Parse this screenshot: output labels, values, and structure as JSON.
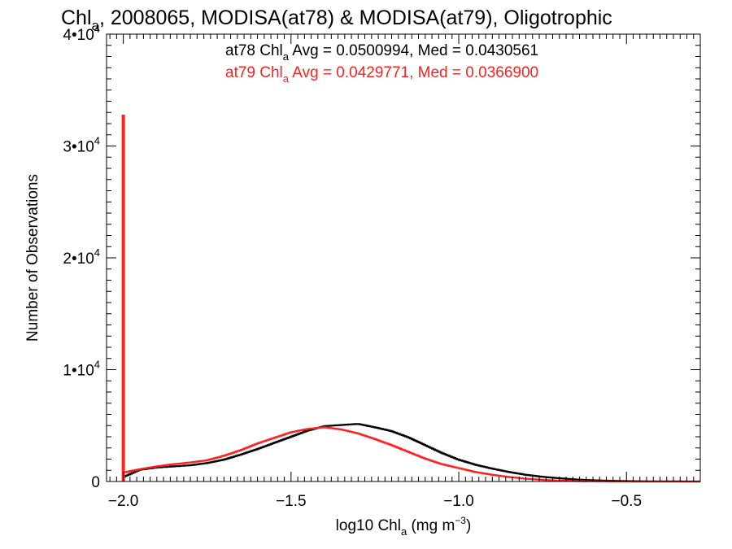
{
  "chart_data": {
    "type": "histogram",
    "title_parts": [
      "Chl",
      "a",
      ", 2008065, MODISA(at78) & MODISA(at79), Oligotrophic"
    ],
    "xlabel_parts": [
      "log10 Chl",
      "a",
      " (mg m",
      "−3",
      ")"
    ],
    "ylabel": "Number of Observations",
    "xlim": [
      -2.05,
      -0.28
    ],
    "ylim": [
      0,
      40000
    ],
    "x_ticks": [
      {
        "value": -2.0,
        "label": "−2.0"
      },
      {
        "value": -1.5,
        "label": "−1.5"
      },
      {
        "value": -1.0,
        "label": "−1.0"
      },
      {
        "value": -0.5,
        "label": "−0.5"
      }
    ],
    "y_ticks": [
      {
        "value": 0,
        "label_parts": [
          "0",
          ""
        ]
      },
      {
        "value": 10000,
        "label_parts": [
          "1•10",
          "4"
        ]
      },
      {
        "value": 20000,
        "label_parts": [
          "2•10",
          "4"
        ]
      },
      {
        "value": 30000,
        "label_parts": [
          "3•10",
          "4"
        ]
      },
      {
        "value": 40000,
        "label_parts": [
          "4•10",
          "4"
        ]
      }
    ],
    "series": [
      {
        "name": "at78",
        "color": "#000000",
        "stats_parts": [
          "at78 Chl",
          "a",
          " Avg = 0.0500994, Med = 0.0430561"
        ],
        "spike": {
          "x": -2.0,
          "y": 0
        },
        "x": [
          -2.0,
          -1.95,
          -1.9,
          -1.85,
          -1.8,
          -1.75,
          -1.7,
          -1.65,
          -1.6,
          -1.55,
          -1.5,
          -1.45,
          -1.4,
          -1.35,
          -1.3,
          -1.25,
          -1.2,
          -1.15,
          -1.1,
          -1.05,
          -1.0,
          -0.95,
          -0.9,
          -0.85,
          -0.8,
          -0.75,
          -0.7,
          -0.65,
          -0.6,
          -0.55,
          -0.5,
          -0.45,
          -0.4,
          -0.35,
          -0.3
        ],
        "y": [
          400,
          1050,
          1250,
          1350,
          1450,
          1650,
          1950,
          2400,
          2900,
          3450,
          4000,
          4550,
          4950,
          5050,
          5150,
          4850,
          4500,
          3950,
          3250,
          2550,
          1950,
          1500,
          1150,
          850,
          600,
          420,
          290,
          180,
          110,
          70,
          40,
          20,
          10,
          5,
          0
        ]
      },
      {
        "name": "at79",
        "color": "#ff2020",
        "stats_parts": [
          "at79 Chl",
          "a",
          " Avg = 0.0429771, Med = 0.0366900"
        ],
        "spike": {
          "x": -2.0,
          "y": 32800
        },
        "x": [
          -2.0,
          -1.95,
          -1.9,
          -1.85,
          -1.8,
          -1.75,
          -1.7,
          -1.65,
          -1.6,
          -1.55,
          -1.5,
          -1.45,
          -1.4,
          -1.35,
          -1.3,
          -1.25,
          -1.2,
          -1.15,
          -1.1,
          -1.05,
          -1.0,
          -0.95,
          -0.9,
          -0.85,
          -0.8,
          -0.75,
          -0.7,
          -0.65,
          -0.6,
          -0.55,
          -0.5,
          -0.45,
          -0.4,
          -0.35,
          -0.3
        ],
        "y": [
          800,
          1100,
          1350,
          1550,
          1700,
          1900,
          2300,
          2800,
          3400,
          3900,
          4400,
          4700,
          4850,
          4650,
          4300,
          3800,
          3250,
          2650,
          2050,
          1550,
          1200,
          850,
          600,
          400,
          250,
          150,
          80,
          40,
          20,
          10,
          5,
          0,
          0,
          0,
          0
        ]
      }
    ]
  }
}
